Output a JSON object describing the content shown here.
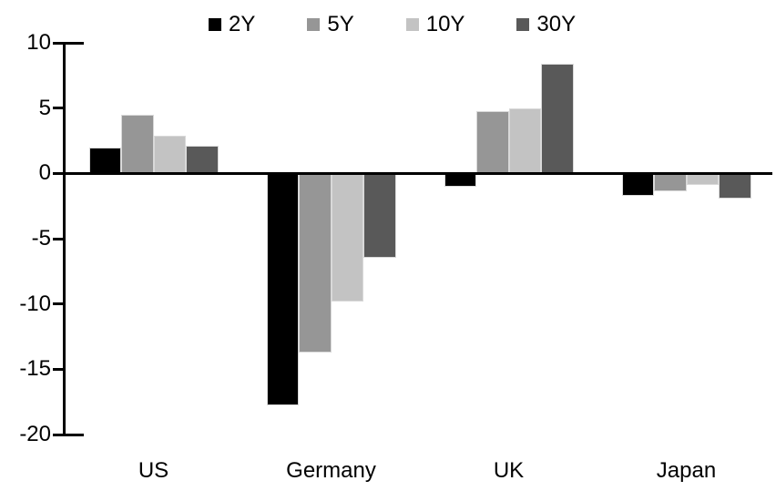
{
  "chart_data": {
    "type": "bar",
    "title": "",
    "xlabel": "",
    "ylabel": "",
    "categories": [
      "US",
      "Germany",
      "UK",
      "Japan"
    ],
    "series": [
      {
        "name": "2Y",
        "color": "#000000",
        "values": [
          2.0,
          -17.8,
          -1.0,
          -1.7
        ]
      },
      {
        "name": "5Y",
        "color": "#969696",
        "values": [
          4.5,
          -13.7,
          4.8,
          -1.4
        ]
      },
      {
        "name": "10Y",
        "color": "#c3c3c3",
        "values": [
          2.9,
          -9.8,
          5.0,
          -0.9
        ]
      },
      {
        "name": "30Y",
        "color": "#595959",
        "values": [
          2.1,
          -6.5,
          8.4,
          -1.9
        ]
      }
    ],
    "ylim": [
      -20,
      10
    ],
    "yticks": [
      10,
      5,
      0,
      -5,
      -10,
      -15,
      -20
    ],
    "grid": false,
    "legend_position": "top-center",
    "axis_color": "#000000",
    "bar_border_color": "#d9d9d9",
    "background_color": "#ffffff"
  }
}
